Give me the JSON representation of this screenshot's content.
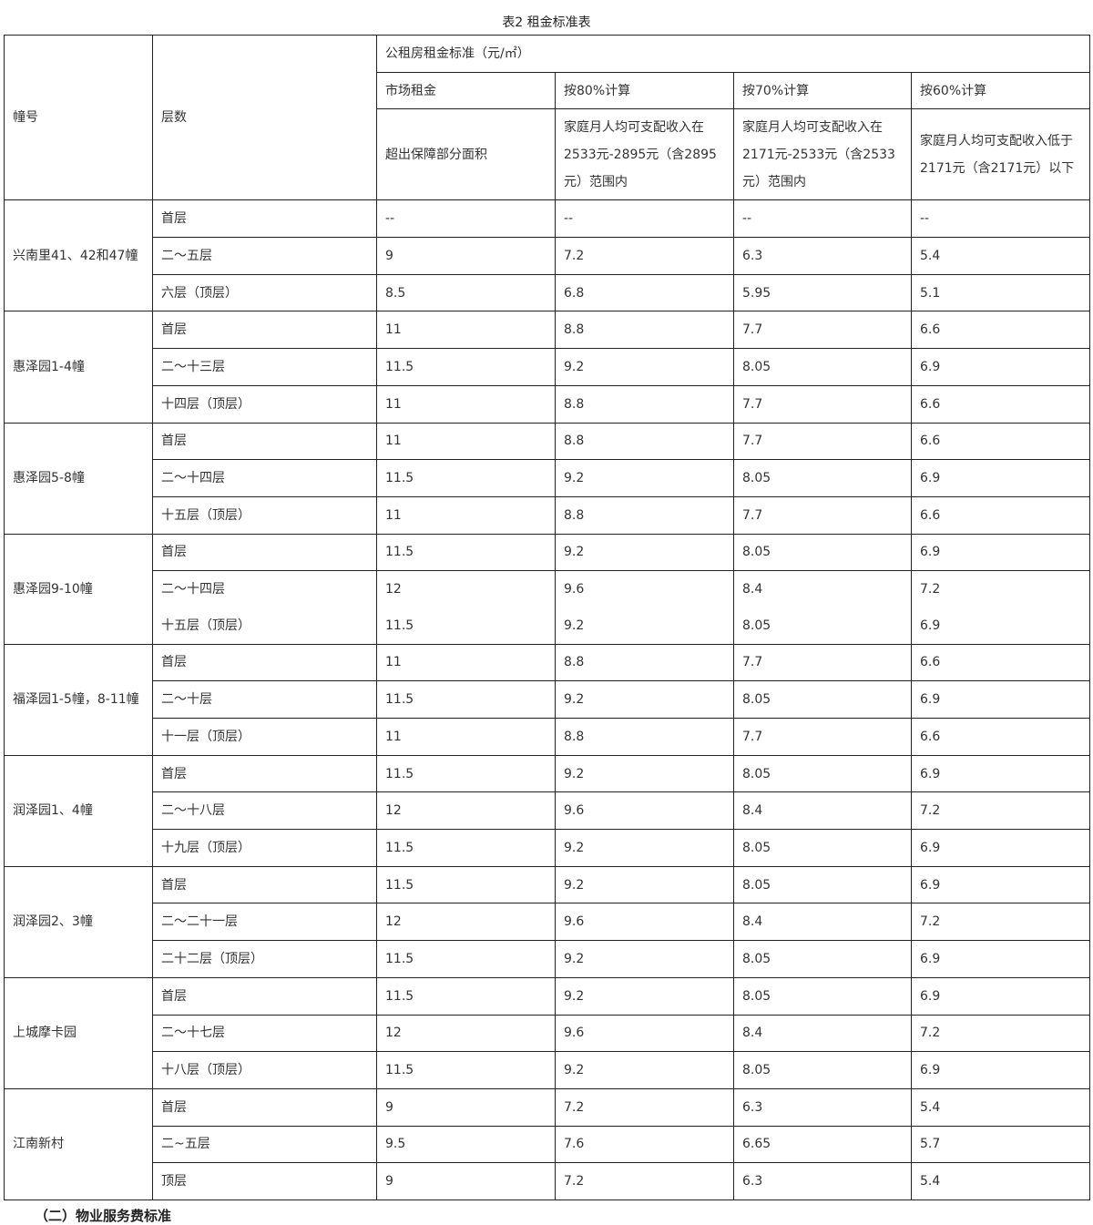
{
  "title": "表2 租金标准表",
  "headers": {
    "building": "幢号",
    "floor": "层数",
    "group": "公租房租金标准（元/㎡）",
    "columns": [
      "市场租金",
      "按80%计算",
      "按70%计算",
      "按60%计算"
    ],
    "subcolumns": [
      "超出保障部分面积",
      "家庭月人均可支配收入在2533元-2895元（含2895元）范围内",
      "家庭月人均可支配收入在2171元-2533元（含2533元）范围内",
      "家庭月人均可支配收入低于2171元（含2171元）以下"
    ]
  },
  "groups": [
    {
      "building": "兴南里41、42和47幢",
      "rows": [
        {
          "floor": "首层",
          "values": [
            "--",
            "--",
            "--",
            "--"
          ]
        },
        {
          "floor": "二～五层",
          "values": [
            "9",
            "7.2",
            "6.3",
            "5.4"
          ]
        },
        {
          "floor": "六层（顶层）",
          "values": [
            "8.5",
            "6.8",
            "5.95",
            "5.1"
          ]
        }
      ]
    },
    {
      "building": "惠泽园1-4幢",
      "rows": [
        {
          "floor": "首层",
          "values": [
            "11",
            "8.8",
            "7.7",
            "6.6"
          ]
        },
        {
          "floor": "二～十三层",
          "values": [
            "11.5",
            "9.2",
            "8.05",
            "6.9"
          ]
        },
        {
          "floor": "十四层（顶层）",
          "values": [
            "11",
            "8.8",
            "7.7",
            "6.6"
          ]
        }
      ]
    },
    {
      "building": "惠泽园5-8幢",
      "rows": [
        {
          "floor": "首层",
          "values": [
            "11",
            "8.8",
            "7.7",
            "6.6"
          ]
        },
        {
          "floor": "二～十四层",
          "values": [
            "11.5",
            "9.2",
            "8.05",
            "6.9"
          ]
        },
        {
          "floor": "十五层（顶层）",
          "values": [
            "11",
            "8.8",
            "7.7",
            "6.6"
          ]
        }
      ]
    },
    {
      "building": "惠泽园9-10幢",
      "rows": [
        {
          "floor": "首层",
          "values": [
            "11.5",
            "9.2",
            "8.05",
            "6.9"
          ]
        },
        {
          "floor": "二～十四层",
          "values": [
            "12",
            "9.6",
            "8.4",
            "7.2"
          ]
        },
        {
          "floor": "十五层（顶层）",
          "values": [
            "11.5",
            "9.2",
            "8.05",
            "6.9"
          ]
        }
      ]
    },
    {
      "building": "福泽园1-5幢，8-11幢",
      "rows": [
        {
          "floor": "首层",
          "values": [
            "11",
            "8.8",
            "7.7",
            "6.6"
          ]
        },
        {
          "floor": "二～十层",
          "values": [
            "11.5",
            "9.2",
            "8.05",
            "6.9"
          ]
        },
        {
          "floor": "十一层（顶层）",
          "values": [
            "11",
            "8.8",
            "7.7",
            "6.6"
          ]
        }
      ]
    },
    {
      "building": "润泽园1、4幢",
      "rows": [
        {
          "floor": "首层",
          "values": [
            "11.5",
            "9.2",
            "8.05",
            "6.9"
          ]
        },
        {
          "floor": "二～十八层",
          "values": [
            "12",
            "9.6",
            "8.4",
            "7.2"
          ]
        },
        {
          "floor": "十九层（顶层）",
          "values": [
            "11.5",
            "9.2",
            "8.05",
            "6.9"
          ]
        }
      ]
    },
    {
      "building": "润泽园2、3幢",
      "rows": [
        {
          "floor": "首层",
          "values": [
            "11.5",
            "9.2",
            "8.05",
            "6.9"
          ]
        },
        {
          "floor": "二～二十一层",
          "values": [
            "12",
            "9.6",
            "8.4",
            "7.2"
          ]
        },
        {
          "floor": "二十二层（顶层）",
          "values": [
            "11.5",
            "9.2",
            "8.05",
            "6.9"
          ]
        }
      ]
    },
    {
      "building": "上城摩卡园",
      "rows": [
        {
          "floor": "首层",
          "values": [
            "11.5",
            "9.2",
            "8.05",
            "6.9"
          ]
        },
        {
          "floor": "二～十七层",
          "values": [
            "12",
            "9.6",
            "8.4",
            "7.2"
          ]
        },
        {
          "floor": "十八层（顶层）",
          "values": [
            "11.5",
            "9.2",
            "8.05",
            "6.9"
          ]
        }
      ]
    },
    {
      "building": "江南新村",
      "rows": [
        {
          "floor": "首层",
          "values": [
            "9",
            "7.2",
            "6.3",
            "5.4"
          ]
        },
        {
          "floor": "二~五层",
          "values": [
            "9.5",
            "7.6",
            "6.65",
            "5.7"
          ]
        },
        {
          "floor": "顶层",
          "values": [
            "9",
            "7.2",
            "6.3",
            "5.4"
          ]
        }
      ]
    }
  ],
  "footer": "（二）物业服务费标准"
}
